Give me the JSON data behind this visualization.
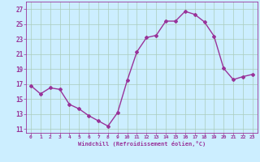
{
  "x": [
    0,
    1,
    2,
    3,
    4,
    5,
    6,
    7,
    8,
    9,
    10,
    11,
    12,
    13,
    14,
    15,
    16,
    17,
    18,
    19,
    20,
    21,
    22,
    23
  ],
  "y": [
    16.8,
    15.7,
    16.5,
    16.3,
    14.3,
    13.7,
    12.8,
    12.1,
    11.4,
    13.2,
    17.5,
    21.3,
    23.2,
    23.5,
    25.4,
    25.4,
    26.7,
    26.3,
    25.3,
    23.4,
    19.1,
    17.6,
    18.0,
    18.3
  ],
  "line_color": "#993399",
  "marker": "D",
  "marker_size": 2,
  "line_width": 1.0,
  "bg_color": "#cceeff",
  "grid_color": "#aaccbb",
  "xlabel": "Windchill (Refroidissement éolien,°C)",
  "xlabel_color": "#993399",
  "tick_color": "#993399",
  "yticks": [
    11,
    13,
    15,
    17,
    19,
    21,
    23,
    25,
    27
  ],
  "xticks": [
    0,
    1,
    2,
    3,
    4,
    5,
    6,
    7,
    8,
    9,
    10,
    11,
    12,
    13,
    14,
    15,
    16,
    17,
    18,
    19,
    20,
    21,
    22,
    23
  ],
  "ylim": [
    10.5,
    28.0
  ],
  "xlim": [
    -0.5,
    23.5
  ]
}
